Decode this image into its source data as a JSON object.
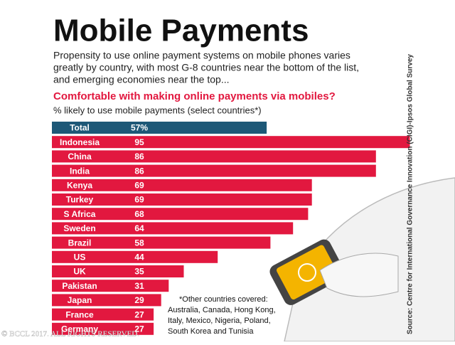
{
  "chart_data": {
    "type": "bar",
    "orientation": "horizontal",
    "title": "Mobile Payments",
    "description": [
      "Propensity to use online payment systems on mobile phones varies",
      "greatly by country, with most G-8 countries near the bottom of the list,",
      "and emerging economies near the top..."
    ],
    "question": "Comfortable with making online payments via mobiles?",
    "subtitle": "% likely to use mobile payments (select countries*)",
    "categories": [
      "Total",
      "Indonesia",
      "China",
      "India",
      "Kenya",
      "Turkey",
      "S Africa",
      "Sweden",
      "Brazil",
      "US",
      "UK",
      "Pakistan",
      "Japan",
      "France",
      "Germany"
    ],
    "values": [
      57,
      95,
      86,
      86,
      69,
      69,
      68,
      64,
      58,
      44,
      35,
      31,
      29,
      27,
      27
    ],
    "value_labels": [
      "57%",
      "95",
      "86",
      "86",
      "69",
      "69",
      "68",
      "64",
      "58",
      "44",
      "35",
      "31",
      "29",
      "27",
      "27"
    ],
    "colors": [
      "#1d5877",
      "#e2183f",
      "#e2183f",
      "#e2183f",
      "#e2183f",
      "#e2183f",
      "#e2183f",
      "#e2183f",
      "#e2183f",
      "#e2183f",
      "#e2183f",
      "#e2183f",
      "#e2183f",
      "#e2183f",
      "#e2183f"
    ],
    "note": [
      "*Other countries covered:",
      "Australia, Canada, Hong Kong,",
      "Italy, Mexico, Nigeria, Poland,",
      "South Korea and Tunisia"
    ],
    "source": "Source: Centre for International Governance Innovation (CIGI)-Ipsos Global Survey",
    "copyright": "© BCCL 2017. ALL RIGHTS RESERVED."
  }
}
